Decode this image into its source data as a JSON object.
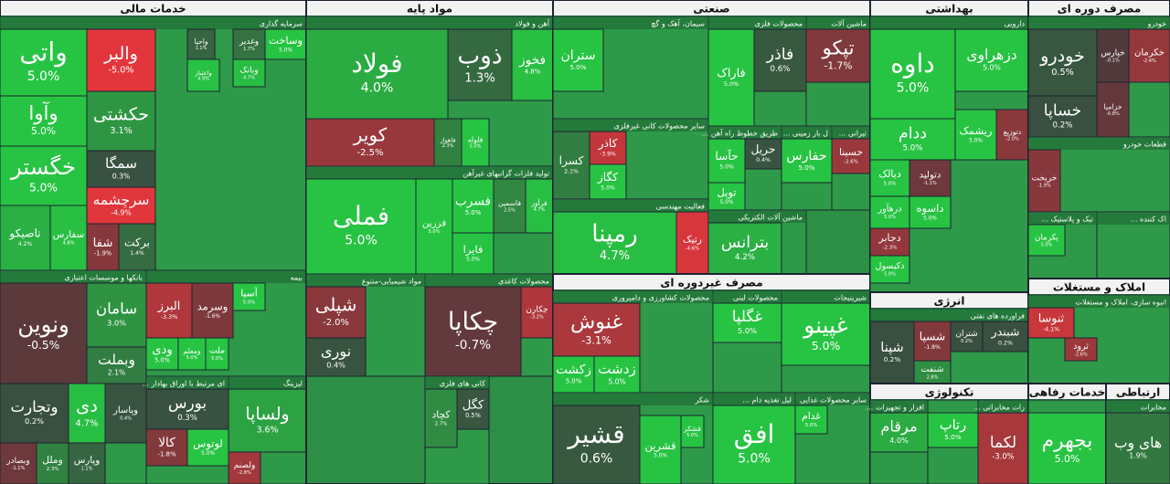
{
  "chart_data": {
    "type": "treemap",
    "groups": [
      {
        "name": "خدمات مالی",
        "sectors": [
          {
            "name": "سرمایه گذاری",
            "tiles": [
              "واتی",
              "والبر",
              "وآوا",
              "حکشتی",
              "خگستر",
              "سمگا",
              "سرچشمه",
              "تاصیکو",
              "سفارس",
              "شفا",
              "برکت",
              "واحیا",
              "وغدیر",
              "وساخت",
              "واعتبار",
              "وبانک"
            ],
            "values": [
              5.0,
              -5.0,
              5.0,
              3.1,
              5.0,
              0.3,
              -4.9,
              4.2,
              4.8,
              -1.9,
              1.4,
              1.1,
              1.7,
              5.0,
              4.9,
              4.7
            ],
            "value_labels": [
              "5.0%",
              "-5.0%",
              "5.0%",
              "3.1%",
              "5.0%",
              "0.3%",
              "-4.9%",
              "4.2%",
              "4.8%",
              "-1.9%",
              "1.4%",
              "1.1%",
              "1.7%",
              "5.0%",
              "4.9%",
              "4.7%"
            ]
          },
          {
            "name": "بانکها و موسسات اعتباری",
            "tiles": [
              "ونوین",
              "سامان",
              "وبملت",
              "وتجارت",
              "دی",
              "وپاسار",
              "وبصادر",
              "وملل",
              "وپارس"
            ],
            "values": [
              -0.5,
              3.0,
              2.1,
              0.2,
              4.7,
              0.4,
              -1.1,
              2.3,
              1.1
            ],
            "value_labels": [
              "-0.5%",
              "3.0%",
              "2.1%",
              "0.2%",
              "4.7%",
              "0.4%",
              "-1.1%",
              "2.3%",
              "1.1%"
            ]
          },
          {
            "name": "بیمه",
            "tiles": [
              "البرز",
              "وسرمد",
              "آسیا",
              "ودی",
              "ومعلم",
              "ملت"
            ],
            "values": [
              -3.3,
              -1.6,
              5.0,
              5.0,
              5.0,
              5.0
            ],
            "value_labels": [
              "-3.3%",
              "-1.6%",
              "5.0%",
              "5.0%",
              "5.0%",
              "5.0%"
            ]
          },
          {
            "name": "ای مرتبط با اوراق بهادار ...",
            "tiles": [
              "بورس",
              "کالا",
              "لوتوس"
            ],
            "values": [
              0.3,
              -1.8,
              5.0
            ],
            "value_labels": [
              "0.3%",
              "-1.8%",
              "5.0%"
            ]
          },
          {
            "name": "لیزینگ",
            "tiles": [
              "ولساپا",
              "ولصنم"
            ],
            "values": [
              3.6,
              -2.8
            ],
            "value_labels": [
              "3.6%",
              "-2.8%"
            ]
          }
        ]
      },
      {
        "name": "مواد پایه",
        "sectors": [
          {
            "name": "آهن و فولاد",
            "tiles": [
              "فولاد",
              "ذوب",
              "فخوز",
              "کویر",
              "فاهواز",
              "فلوله"
            ],
            "values": [
              4.0,
              1.3,
              4.8,
              -2.5,
              2.3,
              5.0
            ],
            "value_labels": [
              "4.0%",
              "1.3%",
              "4.8%",
              "-2.5%",
              "2.3%",
              "5.0%"
            ]
          },
          {
            "name": "تولید فلزات گرانبهای غیرآهن",
            "tiles": [
              "فملی",
              "فزرین",
              "فسرب",
              "فایرا",
              "فاسمین",
              "فرآور"
            ],
            "values": [
              5.0,
              5.0,
              5.0,
              5.0,
              2.5,
              4.7
            ],
            "value_labels": [
              "5.0%",
              "5.0%",
              "5.0%",
              "5.0%",
              "2.5%",
              "4.7%"
            ]
          },
          {
            "name": "مواد شیمیایی-متنوع",
            "tiles": [
              "شپلی",
              "نوری"
            ],
            "values": [
              -2.0,
              0.4
            ],
            "value_labels": [
              "-2.0%",
              "0.4%"
            ]
          },
          {
            "name": "محصولات کاغذی",
            "tiles": [
              "چکاپا",
              "چکارن"
            ],
            "values": [
              -0.7,
              -3.2
            ],
            "value_labels": [
              "-0.7%",
              "-3.2%"
            ]
          },
          {
            "name": "کانی های فلزی",
            "tiles": [
              "کچاد",
              "کگل"
            ],
            "values": [
              2.7,
              0.5
            ],
            "value_labels": [
              "2.7%",
              "0.5%"
            ]
          }
        ]
      },
      {
        "name": "صنعتی",
        "sectors": [
          {
            "name": "سیمان، آهک و گچ",
            "tiles": [
              "ستران"
            ],
            "values": [
              5.0
            ],
            "value_labels": [
              "5.0%"
            ]
          },
          {
            "name": "سایر محصولات کانی غیرفلزی",
            "tiles": [
              "کسرا",
              "کاذر",
              "کگاز"
            ],
            "values": [
              2.1,
              -3.9,
              5.0
            ],
            "value_labels": [
              "2.1%",
              "-3.9%",
              "5.0%"
            ]
          },
          {
            "name": "فعالیت مهندسی",
            "tiles": [
              "رمپنا",
              "رتیک"
            ],
            "values": [
              4.7,
              -4.6
            ],
            "value_labels": [
              "4.7%",
              "-4.6%"
            ]
          },
          {
            "name": "محصولات فلزی",
            "tiles": [
              "فاراک",
              "فاذر"
            ],
            "values": [
              5.0,
              0.6
            ],
            "value_labels": [
              "5.0%",
              "0.6%"
            ]
          },
          {
            "name": "ماشین آلات",
            "tiles": [
              "تپکو"
            ],
            "values": [
              -1.7
            ],
            "value_labels": [
              "-1.7%"
            ]
          },
          {
            "name": "طریق خطوط راه آهن ...",
            "tiles": [
              "حآسا",
              "حریل",
              "تویل"
            ],
            "values": [
              5.0,
              0.4,
              5.0
            ],
            "value_labels": [
              "5.0%",
              "0.4%",
              "5.0%"
            ]
          },
          {
            "name": "ل بار زمینی ...",
            "tiles": [
              "حفارس"
            ],
            "values": [
              5.0
            ],
            "value_labels": [
              "5.0%"
            ]
          },
          {
            "name": "تیرانی ...",
            "tiles": [
              "حسینا"
            ],
            "values": [
              -2.6
            ],
            "value_labels": [
              "-2.6%"
            ]
          },
          {
            "name": "ماشین آلات الکتریکی",
            "tiles": [
              "بترانس"
            ],
            "values": [
              4.2
            ],
            "value_labels": [
              "4.2%"
            ]
          }
        ]
      },
      {
        "name": "مصرف غیردوره ای",
        "sectors": [
          {
            "name": "محصولات کشاورزی و دامپروری",
            "tiles": [
              "غنوش",
              "زدشت",
              "زکشت"
            ],
            "values": [
              -3.1,
              5.0,
              5.0
            ],
            "value_labels": [
              "-3.1%",
              "5.0%",
              "5.0%"
            ]
          },
          {
            "name": "محصولات لبنی",
            "tiles": [
              "غگلپا"
            ],
            "values": [
              5.0
            ],
            "value_labels": [
              "5.0%"
            ]
          },
          {
            "name": "شیرینیجات",
            "tiles": [
              "غپینو"
            ],
            "values": [
              5.0
            ],
            "value_labels": [
              "5.0%"
            ]
          },
          {
            "name": "شکر",
            "tiles": [
              "قشیر",
              "قشرین",
              "قشکر"
            ],
            "values": [
              0.6,
              5.0,
              5.0
            ],
            "value_labels": [
              "0.6%",
              "5.0%",
              "5.0%"
            ]
          },
          {
            "name": "لیل تغذیه دام ...",
            "tiles": [
              "افق"
            ],
            "values": [
              5.0
            ],
            "value_labels": [
              "5.0%"
            ]
          },
          {
            "name": "سایر محصولات غذایی",
            "tiles": [
              "غدام"
            ],
            "values": [
              5.0
            ],
            "value_labels": [
              "5.0%"
            ]
          }
        ]
      },
      {
        "name": "بهداشتی",
        "sectors": [
          {
            "name": "دارویی",
            "tiles": [
              "داوه",
              "دزهراوی",
              "ددام",
              "ریشمک",
              "دتوزیع",
              "دیالک",
              "دتولید",
              "درهآور",
              "داسوه",
              "دجابر",
              "دکیسول"
            ],
            "values": [
              5.0,
              5.0,
              5.0,
              5.0,
              -2.0,
              5.0,
              -1.1,
              5.0,
              5.0,
              -2.3,
              5.0
            ],
            "value_labels": [
              "5.0%",
              "5.0%",
              "5.0%",
              "5.0%",
              "-2.0%",
              "5.0%",
              "-1.1%",
              "5.0%",
              "5.0%",
              "-2.3%",
              "5.0%"
            ]
          }
        ]
      },
      {
        "name": "انرژی",
        "sectors": [
          {
            "name": "فراورده های نفتی",
            "tiles": [
              "شپنا",
              "شسپا",
              "شنفت",
              "شتران",
              "شبندر"
            ],
            "values": [
              0.2,
              -1.8,
              2.8,
              0.2,
              0.2
            ],
            "value_labels": [
              "0.2%",
              "-1.8%",
              "2.8%",
              "0.2%",
              "0.2%"
            ]
          }
        ]
      },
      {
        "name": "تکنولوژی",
        "sectors": [
          {
            "name": "افزار و تجهیزات ...",
            "tiles": [
              "مرقام"
            ],
            "values": [
              4.0
            ],
            "value_labels": [
              "4.0%"
            ]
          },
          {
            "tiles": [
              "رتاپ"
            ],
            "values": [
              5.0
            ],
            "value_labels": [
              "5.0%"
            ]
          },
          {
            "name": "زات مخابراتی ...",
            "tiles": [
              "لکما"
            ],
            "values": [
              -3.0
            ],
            "value_labels": [
              "-3.0%"
            ]
          }
        ]
      },
      {
        "name": "مصرف دوره ای",
        "sectors": [
          {
            "name": "خودرو",
            "tiles": [
              "خودرو",
              "خساپا",
              "خپارس",
              "خزامیا",
              "خکرمان"
            ],
            "values": [
              0.5,
              0.2,
              -0.1,
              -0.8,
              -2.4
            ],
            "value_labels": [
              "0.5%",
              "0.2%",
              "-0.1%",
              "-0.8%",
              "-2.4%"
            ]
          },
          {
            "name": "قطعات خودرو",
            "tiles": [
              "خریخت"
            ],
            "values": [
              -1.9
            ],
            "value_labels": [
              "-1.9%"
            ]
          },
          {
            "name": "تیک و پلاستیک ...",
            "tiles": [
              "پکرمان"
            ],
            "values": [
              5.0
            ],
            "value_labels": [
              "5.0%"
            ]
          },
          {
            "name": "اک کننده ...",
            "tiles": [],
            "values": [],
            "value_labels": []
          }
        ]
      },
      {
        "name": "املاک و مستغلات",
        "sectors": [
          {
            "name": "انبوه سازی، املاک و مستغلات",
            "tiles": [
              "ثنوسا",
              "ثرود"
            ],
            "values": [
              -4.1,
              -2.6
            ],
            "value_labels": [
              "-4.1%",
              "-2.6%"
            ]
          }
        ]
      },
      {
        "name": "خدمات رفاهی",
        "sectors": [
          {
            "tiles": [
              "بجهرم"
            ],
            "values": [
              5.0
            ],
            "value_labels": [
              "5.0%"
            ]
          }
        ]
      },
      {
        "name": "ارتباطی",
        "sectors": [
          {
            "name": "مخابرات",
            "tiles": [
              "های وب"
            ],
            "values": [
              1.9
            ],
            "value_labels": [
              "1.9%"
            ]
          }
        ]
      }
    ]
  }
}
